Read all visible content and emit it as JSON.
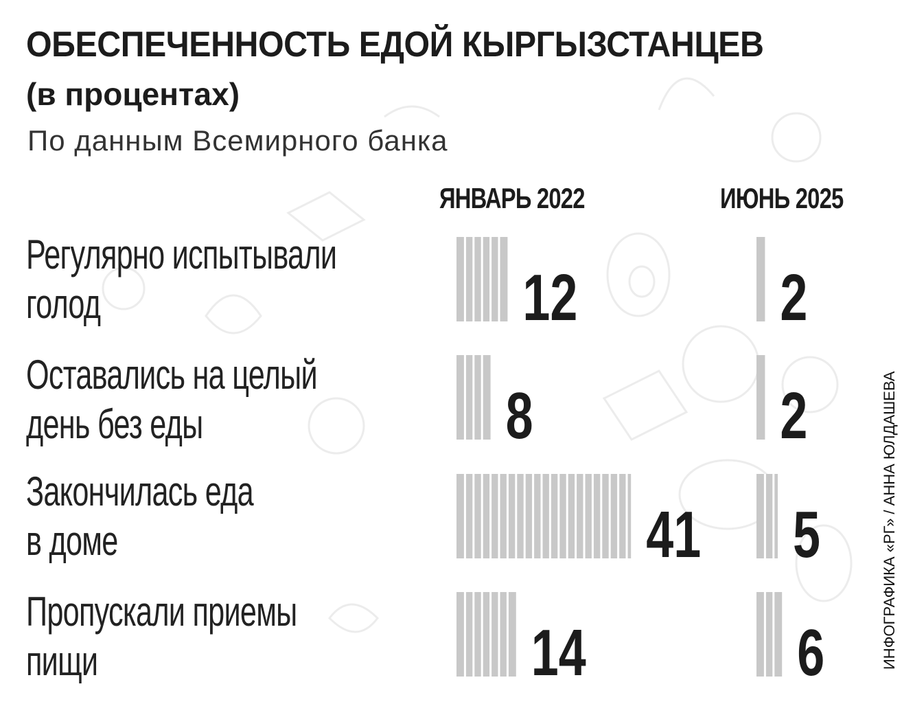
{
  "header": {
    "title": "ОБЕСПЕЧЕННОСТЬ ЕДОЙ КЫРГЫЗСТАНЦЕВ",
    "subtitle": "(в процентах)",
    "source": "По данным Всемирного банка"
  },
  "credit": "ИНФОГРАФИКА «РГ» / АННА ЮЛДАШЕВА",
  "colors": {
    "bar": "#c8c8c8",
    "bar_stripe": "#ffffff",
    "text": "#1c1c1c"
  },
  "chart_data": {
    "type": "bar",
    "orientation": "horizontal",
    "title": "ОБЕСПЕЧЕННОСТЬ ЕДОЙ КЫРГЫЗСТАНЦЕВ",
    "subtitle": "(в процентах)",
    "unit": "%",
    "grid": false,
    "series": [
      {
        "name": "ЯНВАРЬ 2022",
        "values": [
          12,
          8,
          41,
          14
        ]
      },
      {
        "name": "ИЮНЬ 2025",
        "values": [
          2,
          2,
          5,
          6
        ]
      }
    ],
    "categories": [
      [
        "Регулярно испытывали",
        "голод"
      ],
      [
        "Оставались на целый",
        "день без еды"
      ],
      [
        "Закончилась еда",
        "в доме"
      ],
      [
        "Пропускали приемы",
        "пищи"
      ]
    ]
  }
}
